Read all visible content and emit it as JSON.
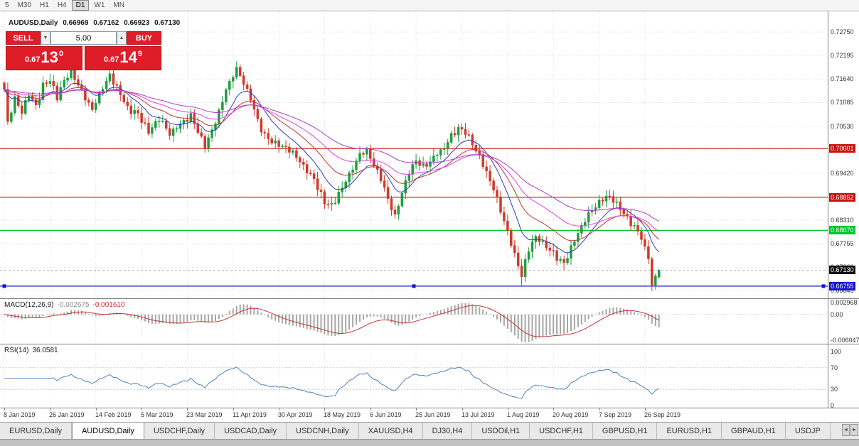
{
  "toolbar": {
    "periods": [
      "5",
      "M30",
      "H1",
      "H4",
      "D1",
      "W1",
      "MN"
    ],
    "active": "D1"
  },
  "chart": {
    "title": "AUDUSD,Daily",
    "ohlc": {
      "open": "0.66969",
      "high": "0.67162",
      "low": "0.66923",
      "close": "0.67130"
    },
    "trade_panel": {
      "sell": "SELL",
      "buy": "BUY",
      "volume": "5.00",
      "spinner_down": "▼",
      "spinner_up": "▲",
      "bid": {
        "prefix": "0.67",
        "big": "13",
        "sup": "0"
      },
      "ask": {
        "prefix": "0.67",
        "big": "14",
        "sup": "9"
      }
    },
    "colors": {
      "bull": "#1f9d40",
      "bear": "#cf3a2b",
      "grid": "#e0e0e0",
      "hline_red": "#cc1111",
      "hline_green": "#00c32c",
      "hline_blue": "#1414cc",
      "current_badge": "#111111"
    }
  },
  "price_axis": {
    "labels": [
      "0.72750",
      "0.72195",
      "0.71640",
      "0.71085",
      "0.70530",
      "0.69975",
      "0.69420",
      "0.68865",
      "0.68310",
      "0.67755",
      "0.67200",
      "0.66645"
    ],
    "badges": [
      {
        "text": "0.70001",
        "price": 0.70001,
        "bg": "#cc1111",
        "name": "resistance-price-badge-1"
      },
      {
        "text": "0.68852",
        "price": 0.68852,
        "bg": "#cc1111",
        "name": "resistance-price-badge-2"
      },
      {
        "text": "0.68070",
        "price": 0.6807,
        "bg": "#00c32c",
        "name": "support-price-badge"
      },
      {
        "text": "0.67130",
        "price": 0.6713,
        "bg": "#111111",
        "name": "current-price-badge"
      },
      {
        "text": "0.66755",
        "price": 0.66755,
        "bg": "#1414cc",
        "name": "selected-line-price-badge"
      }
    ]
  },
  "chart_data": {
    "type": "candlestick",
    "symbol": "AUDUSD",
    "timeframe": "Daily",
    "candle_count": 187,
    "candles_per_tick": 13,
    "wiggle": 0.0009,
    "price_min": 0.66585,
    "price_max": 0.7275,
    "close_anchors": [
      [
        0,
        0.714
      ],
      [
        1,
        0.7058
      ],
      [
        3,
        0.7118
      ],
      [
        5,
        0.7086
      ],
      [
        7,
        0.7128
      ],
      [
        9,
        0.71
      ],
      [
        11,
        0.7148
      ],
      [
        13,
        0.7162
      ],
      [
        15,
        0.712
      ],
      [
        17,
        0.716
      ],
      [
        19,
        0.7185
      ],
      [
        21,
        0.715
      ],
      [
        23,
        0.712
      ],
      [
        25,
        0.7092
      ],
      [
        27,
        0.713
      ],
      [
        30,
        0.7172
      ],
      [
        32,
        0.7145
      ],
      [
        35,
        0.7095
      ],
      [
        38,
        0.7082
      ],
      [
        41,
        0.704
      ],
      [
        44,
        0.7072
      ],
      [
        47,
        0.7035
      ],
      [
        50,
        0.7058
      ],
      [
        53,
        0.7078
      ],
      [
        57,
        0.7005
      ],
      [
        60,
        0.7062
      ],
      [
        63,
        0.714
      ],
      [
        66,
        0.7188
      ],
      [
        68,
        0.7155
      ],
      [
        70,
        0.7118
      ],
      [
        73,
        0.7042
      ],
      [
        76,
        0.7015
      ],
      [
        79,
        0.7005
      ],
      [
        82,
        0.6992
      ],
      [
        85,
        0.6958
      ],
      [
        88,
        0.6928
      ],
      [
        91,
        0.6872
      ],
      [
        93,
        0.6866
      ],
      [
        95,
        0.6892
      ],
      [
        98,
        0.694
      ],
      [
        101,
        0.6985
      ],
      [
        103,
        0.6995
      ],
      [
        105,
        0.6962
      ],
      [
        107,
        0.693
      ],
      [
        109,
        0.688
      ],
      [
        111,
        0.6838
      ],
      [
        113,
        0.6895
      ],
      [
        115,
        0.6945
      ],
      [
        117,
        0.6972
      ],
      [
        119,
        0.6955
      ],
      [
        121,
        0.6968
      ],
      [
        123,
        0.6988
      ],
      [
        125,
        0.7002
      ],
      [
        127,
        0.7032
      ],
      [
        129,
        0.7048
      ],
      [
        131,
        0.704
      ],
      [
        133,
        0.701
      ],
      [
        135,
        0.698
      ],
      [
        137,
        0.6942
      ],
      [
        139,
        0.6905
      ],
      [
        141,
        0.6855
      ],
      [
        143,
        0.6802
      ],
      [
        145,
        0.6748
      ],
      [
        147,
        0.6702
      ],
      [
        149,
        0.6762
      ],
      [
        151,
        0.6792
      ],
      [
        153,
        0.6775
      ],
      [
        155,
        0.6762
      ],
      [
        157,
        0.6742
      ],
      [
        159,
        0.673
      ],
      [
        161,
        0.6765
      ],
      [
        163,
        0.68
      ],
      [
        165,
        0.6832
      ],
      [
        167,
        0.6856
      ],
      [
        169,
        0.6872
      ],
      [
        171,
        0.6886
      ],
      [
        173,
        0.688
      ],
      [
        175,
        0.6858
      ],
      [
        177,
        0.6836
      ],
      [
        179,
        0.6816
      ],
      [
        181,
        0.679
      ],
      [
        182,
        0.6762
      ],
      [
        183,
        0.6745
      ],
      [
        184,
        0.6678
      ],
      [
        185,
        0.6697
      ],
      [
        186,
        0.6713
      ]
    ],
    "wick_overrides": {
      "highs": [
        [
          19,
          0.7198
        ],
        [
          30,
          0.7196
        ],
        [
          66,
          0.7206
        ]
      ],
      "lows": [
        [
          147,
          0.6676
        ],
        [
          184,
          0.6664
        ]
      ]
    },
    "last_candle": {
      "open": 0.66969,
      "high": 0.67162,
      "low": 0.66923,
      "close": 0.6713
    },
    "current_price": 0.6713,
    "moving_averages": [
      {
        "period": 10,
        "color": "#2a3cc4"
      },
      {
        "period": 20,
        "color": "#c23535"
      },
      {
        "period": 34,
        "color": "#e33fe3"
      },
      {
        "period": 55,
        "color": "#aa3fc8"
      }
    ],
    "hlines": [
      {
        "price": 0.70001,
        "color": "#cc1111",
        "selected": false
      },
      {
        "price": 0.68852,
        "color": "#cc1111",
        "selected": false
      },
      {
        "price": 0.6807,
        "color": "#00c32c",
        "selected": false
      },
      {
        "price": 0.66755,
        "color": "#1414cc",
        "selected": true
      }
    ],
    "macd": {
      "fast": 12,
      "slow": 26,
      "signal": 9,
      "hist_color": "#a6a6a6",
      "signal_color": "#c23535",
      "range": [
        -0.006047,
        0.002968
      ]
    },
    "rsi": {
      "period": 14,
      "color": "#4f81bd",
      "levels": [
        70,
        30
      ]
    }
  },
  "macd_panel": {
    "label": "MACD(12,26,9)",
    "value": "-0.002675",
    "signal_value": "-0.001610",
    "axis": [
      "0.002968",
      "0.00",
      "-0.006047"
    ],
    "axis_values": [
      0.002968,
      0,
      -0.006047
    ]
  },
  "rsi_panel": {
    "label": "RSI(14)",
    "value": "36.0581",
    "axis": [
      "100",
      "70",
      "30",
      "0"
    ],
    "axis_values": [
      100,
      70,
      30,
      0
    ]
  },
  "date_axis": {
    "labels": [
      "8 Jan 2019",
      "26 Jan 2019",
      "14 Feb 2019",
      "5 Mar 2019",
      "23 Mar 2019",
      "11 Apr 2019",
      "30 Apr 2019",
      "18 May 2019",
      "6 Jun 2019",
      "25 Jun 2019",
      "13 Jul 2019",
      "1 Aug 2019",
      "20 Aug 2019",
      "7 Sep 2019",
      "26 Sep 2019"
    ]
  },
  "tabbar": {
    "tabs": [
      "EURUSD,Daily",
      "AUDUSD,Daily",
      "USDCHF,Daily",
      "USDCAD,Daily",
      "USDCNH,Daily",
      "XAUUSD,H4",
      "DJ30,H4",
      "USDOil,H1",
      "USDCHF,H1",
      "GBPUSD,H1",
      "EURUSD,H1",
      "GBPAUD,H1",
      "USDJP"
    ],
    "active": "AUDUSD,Daily",
    "left_arrow": "◄",
    "right_arrow": "►"
  }
}
